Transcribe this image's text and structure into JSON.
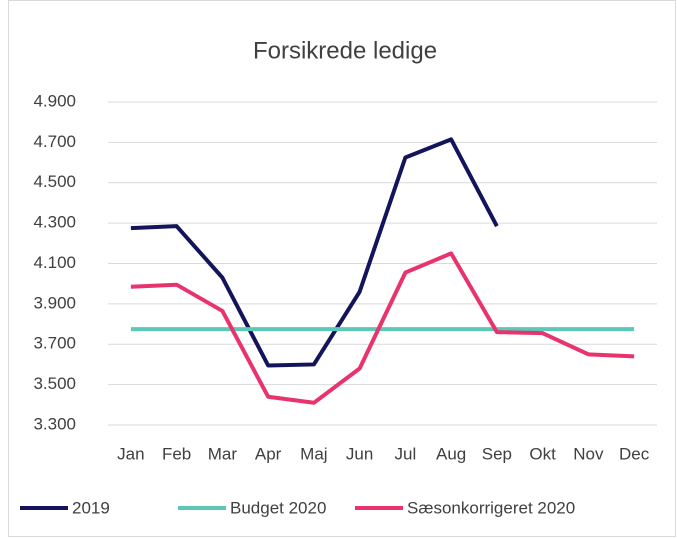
{
  "chart_data": {
    "type": "line",
    "title": "Forsikrede ledige",
    "categories": [
      "Jan",
      "Feb",
      "Mar",
      "Apr",
      "Maj",
      "Jun",
      "Jul",
      "Aug",
      "Sep",
      "Okt",
      "Nov",
      "Dec"
    ],
    "series": [
      {
        "name": "2019",
        "color": "#14145a",
        "values": [
          4275,
          4285,
          4030,
          3595,
          3600,
          3960,
          4625,
          4715,
          4285,
          null,
          null,
          null
        ]
      },
      {
        "name": "Budget 2020",
        "color": "#5bc8b8",
        "values": [
          3775,
          3775,
          3775,
          3775,
          3775,
          3775,
          3775,
          3775,
          3775,
          3775,
          3775,
          3775
        ]
      },
      {
        "name": "Sæsonkorrigeret 2020",
        "color": "#e8336d",
        "values": [
          3985,
          3995,
          3865,
          3440,
          3410,
          3580,
          4055,
          4150,
          3760,
          3755,
          3650,
          3640
        ]
      }
    ],
    "ylim": [
      3300,
      4900
    ],
    "yticks": [
      {
        "value": 3300,
        "label": "3.300"
      },
      {
        "value": 3500,
        "label": "3.500"
      },
      {
        "value": 3700,
        "label": "3.700"
      },
      {
        "value": 3900,
        "label": "3.900"
      },
      {
        "value": 4100,
        "label": "4.100"
      },
      {
        "value": 4300,
        "label": "4.300"
      },
      {
        "value": 4500,
        "label": "4.500"
      },
      {
        "value": 4700,
        "label": "4.700"
      },
      {
        "value": 4900,
        "label": "4.900"
      }
    ],
    "grid": true,
    "legend": "bottom"
  }
}
